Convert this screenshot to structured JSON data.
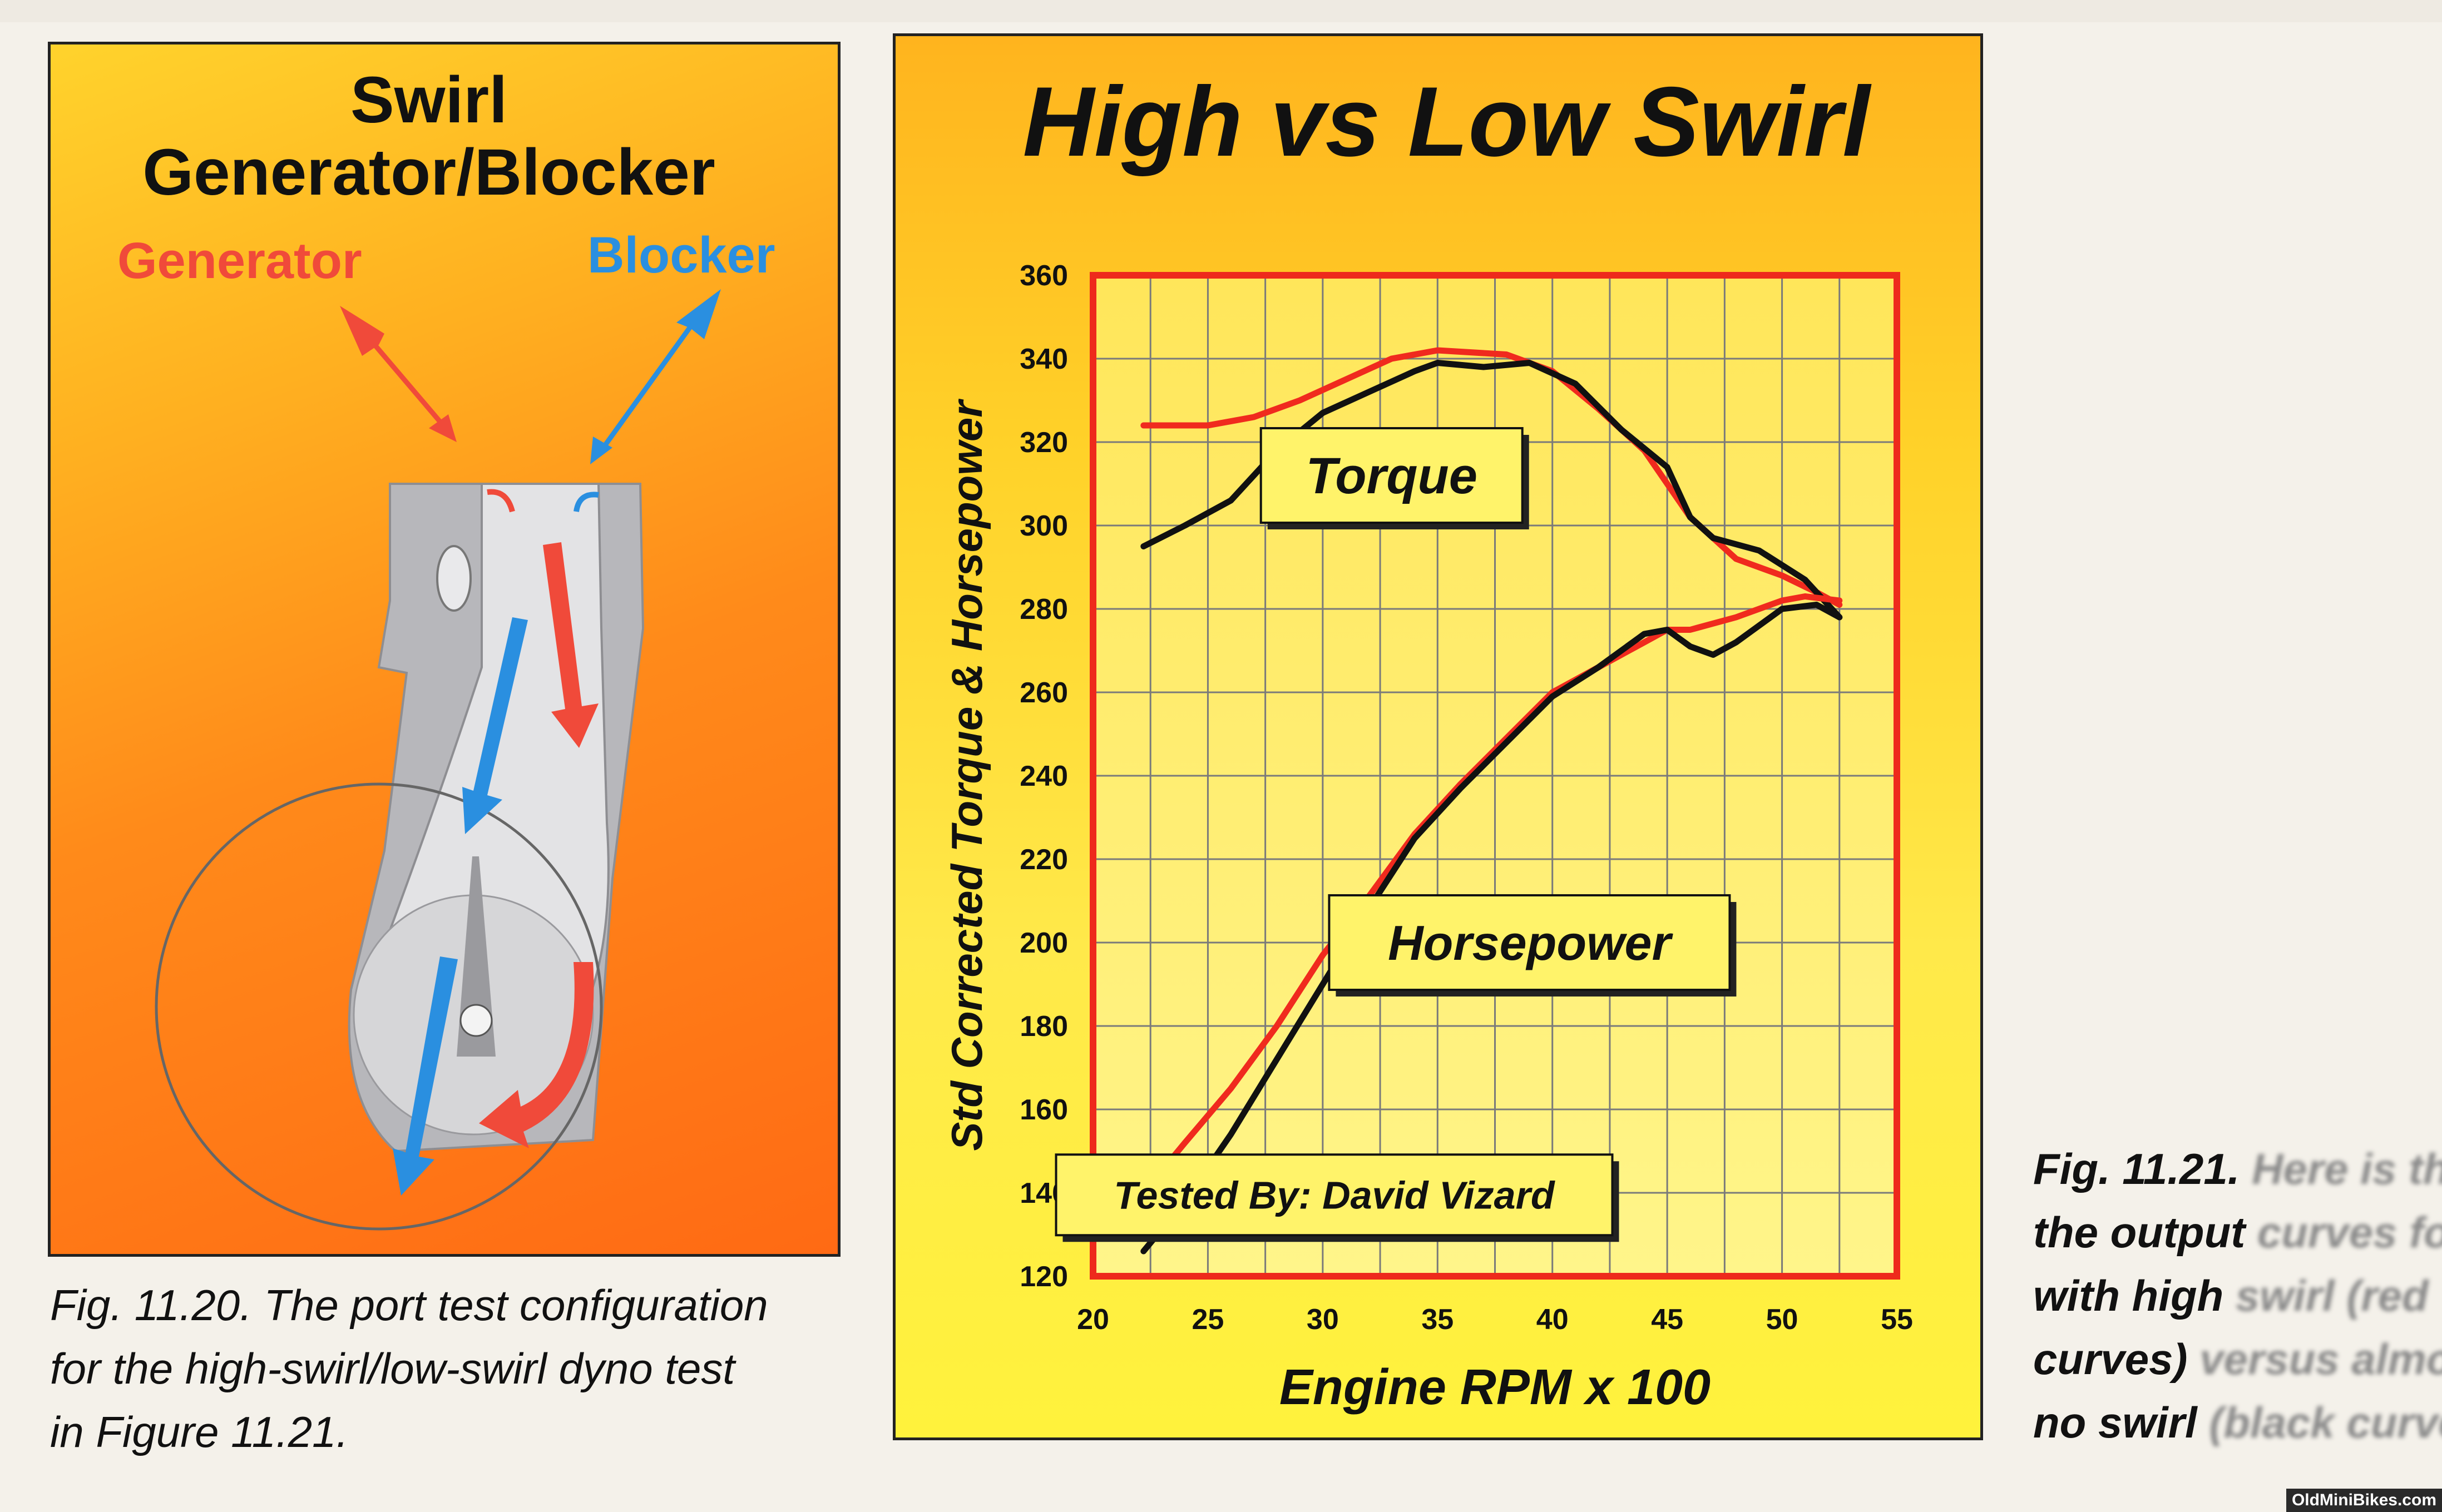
{
  "left_figure": {
    "title_line1": "Swirl",
    "title_line2": "Generator/Blocker",
    "label_generator": "Generator",
    "label_blocker": "Blocker",
    "colors": {
      "generator": "#f04a3a",
      "blocker": "#2a8fe0",
      "port": "#b7b7bb",
      "port_light": "#e8e8ea"
    }
  },
  "caption_left": {
    "line1": "Fig. 11.20. The port test configuration",
    "line2": "for the high-swirl/low-swirl dyno test",
    "line3": "in Figure 11.21."
  },
  "caption_right": {
    "line1_lead": "Fig. 11.21.",
    "line1_blur": "Here is the",
    "line2_lead": "the output",
    "line2_blur": "curves for",
    "line3_lead": "with high",
    "line3_blur": "swirl (red",
    "line4_lead": "curves)",
    "line4_blur": "versus almost",
    "line5_lead": "no swirl",
    "line5_blur": "(black curves)."
  },
  "watermark": "OldMiniBikes.com",
  "chart_data": {
    "type": "line",
    "title": "High vs Low Swirl",
    "xlabel": "Engine RPM x 100",
    "ylabel": "Std Corrected Torque & Horsepower",
    "xlim": [
      20,
      55
    ],
    "ylim": [
      120,
      360
    ],
    "xticks": [
      20,
      25,
      30,
      35,
      40,
      45,
      50,
      55
    ],
    "yticks": [
      120,
      140,
      160,
      180,
      200,
      220,
      240,
      260,
      280,
      300,
      320,
      340,
      360
    ],
    "grid": true,
    "annotations": [
      "Torque",
      "Horsepower",
      "Tested By: David Vizard"
    ],
    "series": [
      {
        "color": "#f02a1e",
        "x": [
          22.2,
          25,
          27,
          29,
          31,
          33,
          35,
          38,
          40,
          42,
          44,
          46,
          48,
          50,
          51.5,
          52.5
        ],
        "y": [
          324,
          324,
          326,
          330,
          335,
          340,
          342,
          341,
          337,
          328,
          318,
          302,
          292,
          288,
          284,
          281
        ]
      },
      {
        "color": "#111111",
        "x": [
          22.2,
          24,
          26,
          28,
          30,
          32,
          34,
          35,
          37,
          39,
          41,
          43,
          45,
          46,
          47,
          49,
          51,
          52.5
        ],
        "y": [
          295,
          300,
          306,
          318,
          327,
          332,
          337,
          339,
          338,
          339,
          334,
          323,
          314,
          302,
          297,
          294,
          287,
          278
        ]
      },
      {
        "color": "#f02a1e",
        "x": [
          22.2,
          24,
          26,
          28,
          30,
          32,
          34,
          36,
          38,
          40,
          42,
          44,
          45,
          46,
          48,
          50,
          51,
          52.5
        ],
        "y": [
          140,
          152,
          165,
          180,
          197,
          211,
          226,
          238,
          249,
          260,
          266,
          272,
          275,
          275,
          278,
          282,
          283,
          282
        ]
      },
      {
        "color": "#111111",
        "x": [
          22.2,
          24,
          26,
          28,
          30,
          32,
          34,
          36,
          38,
          40,
          42,
          44,
          45,
          46,
          47,
          48,
          50,
          51.5,
          52.5
        ],
        "y": [
          126,
          138,
          154,
          172,
          190,
          208,
          225,
          237,
          248,
          259,
          266,
          274,
          275,
          271,
          269,
          272,
          280,
          281,
          278
        ]
      }
    ]
  }
}
